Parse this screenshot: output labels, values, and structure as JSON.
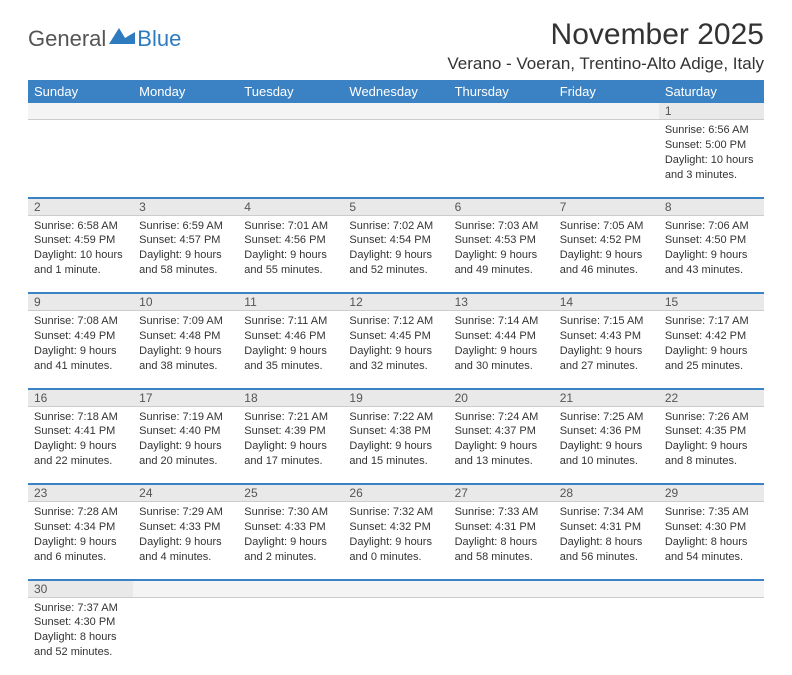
{
  "brand": {
    "general": "General",
    "blue": "Blue"
  },
  "title": "November 2025",
  "location": "Verano - Voeran, Trentino-Alto Adige, Italy",
  "colors": {
    "header_bg": "#3b82c4",
    "daynum_bg": "#e9e9e9",
    "rule": "#3b82c4"
  },
  "weekdays": [
    "Sunday",
    "Monday",
    "Tuesday",
    "Wednesday",
    "Thursday",
    "Friday",
    "Saturday"
  ],
  "weeks": [
    [
      null,
      null,
      null,
      null,
      null,
      null,
      {
        "n": "1",
        "sr": "Sunrise: 6:56 AM",
        "ss": "Sunset: 5:00 PM",
        "d1": "Daylight: 10 hours",
        "d2": "and 3 minutes."
      }
    ],
    [
      {
        "n": "2",
        "sr": "Sunrise: 6:58 AM",
        "ss": "Sunset: 4:59 PM",
        "d1": "Daylight: 10 hours",
        "d2": "and 1 minute."
      },
      {
        "n": "3",
        "sr": "Sunrise: 6:59 AM",
        "ss": "Sunset: 4:57 PM",
        "d1": "Daylight: 9 hours",
        "d2": "and 58 minutes."
      },
      {
        "n": "4",
        "sr": "Sunrise: 7:01 AM",
        "ss": "Sunset: 4:56 PM",
        "d1": "Daylight: 9 hours",
        "d2": "and 55 minutes."
      },
      {
        "n": "5",
        "sr": "Sunrise: 7:02 AM",
        "ss": "Sunset: 4:54 PM",
        "d1": "Daylight: 9 hours",
        "d2": "and 52 minutes."
      },
      {
        "n": "6",
        "sr": "Sunrise: 7:03 AM",
        "ss": "Sunset: 4:53 PM",
        "d1": "Daylight: 9 hours",
        "d2": "and 49 minutes."
      },
      {
        "n": "7",
        "sr": "Sunrise: 7:05 AM",
        "ss": "Sunset: 4:52 PM",
        "d1": "Daylight: 9 hours",
        "d2": "and 46 minutes."
      },
      {
        "n": "8",
        "sr": "Sunrise: 7:06 AM",
        "ss": "Sunset: 4:50 PM",
        "d1": "Daylight: 9 hours",
        "d2": "and 43 minutes."
      }
    ],
    [
      {
        "n": "9",
        "sr": "Sunrise: 7:08 AM",
        "ss": "Sunset: 4:49 PM",
        "d1": "Daylight: 9 hours",
        "d2": "and 41 minutes."
      },
      {
        "n": "10",
        "sr": "Sunrise: 7:09 AM",
        "ss": "Sunset: 4:48 PM",
        "d1": "Daylight: 9 hours",
        "d2": "and 38 minutes."
      },
      {
        "n": "11",
        "sr": "Sunrise: 7:11 AM",
        "ss": "Sunset: 4:46 PM",
        "d1": "Daylight: 9 hours",
        "d2": "and 35 minutes."
      },
      {
        "n": "12",
        "sr": "Sunrise: 7:12 AM",
        "ss": "Sunset: 4:45 PM",
        "d1": "Daylight: 9 hours",
        "d2": "and 32 minutes."
      },
      {
        "n": "13",
        "sr": "Sunrise: 7:14 AM",
        "ss": "Sunset: 4:44 PM",
        "d1": "Daylight: 9 hours",
        "d2": "and 30 minutes."
      },
      {
        "n": "14",
        "sr": "Sunrise: 7:15 AM",
        "ss": "Sunset: 4:43 PM",
        "d1": "Daylight: 9 hours",
        "d2": "and 27 minutes."
      },
      {
        "n": "15",
        "sr": "Sunrise: 7:17 AM",
        "ss": "Sunset: 4:42 PM",
        "d1": "Daylight: 9 hours",
        "d2": "and 25 minutes."
      }
    ],
    [
      {
        "n": "16",
        "sr": "Sunrise: 7:18 AM",
        "ss": "Sunset: 4:41 PM",
        "d1": "Daylight: 9 hours",
        "d2": "and 22 minutes."
      },
      {
        "n": "17",
        "sr": "Sunrise: 7:19 AM",
        "ss": "Sunset: 4:40 PM",
        "d1": "Daylight: 9 hours",
        "d2": "and 20 minutes."
      },
      {
        "n": "18",
        "sr": "Sunrise: 7:21 AM",
        "ss": "Sunset: 4:39 PM",
        "d1": "Daylight: 9 hours",
        "d2": "and 17 minutes."
      },
      {
        "n": "19",
        "sr": "Sunrise: 7:22 AM",
        "ss": "Sunset: 4:38 PM",
        "d1": "Daylight: 9 hours",
        "d2": "and 15 minutes."
      },
      {
        "n": "20",
        "sr": "Sunrise: 7:24 AM",
        "ss": "Sunset: 4:37 PM",
        "d1": "Daylight: 9 hours",
        "d2": "and 13 minutes."
      },
      {
        "n": "21",
        "sr": "Sunrise: 7:25 AM",
        "ss": "Sunset: 4:36 PM",
        "d1": "Daylight: 9 hours",
        "d2": "and 10 minutes."
      },
      {
        "n": "22",
        "sr": "Sunrise: 7:26 AM",
        "ss": "Sunset: 4:35 PM",
        "d1": "Daylight: 9 hours",
        "d2": "and 8 minutes."
      }
    ],
    [
      {
        "n": "23",
        "sr": "Sunrise: 7:28 AM",
        "ss": "Sunset: 4:34 PM",
        "d1": "Daylight: 9 hours",
        "d2": "and 6 minutes."
      },
      {
        "n": "24",
        "sr": "Sunrise: 7:29 AM",
        "ss": "Sunset: 4:33 PM",
        "d1": "Daylight: 9 hours",
        "d2": "and 4 minutes."
      },
      {
        "n": "25",
        "sr": "Sunrise: 7:30 AM",
        "ss": "Sunset: 4:33 PM",
        "d1": "Daylight: 9 hours",
        "d2": "and 2 minutes."
      },
      {
        "n": "26",
        "sr": "Sunrise: 7:32 AM",
        "ss": "Sunset: 4:32 PM",
        "d1": "Daylight: 9 hours",
        "d2": "and 0 minutes."
      },
      {
        "n": "27",
        "sr": "Sunrise: 7:33 AM",
        "ss": "Sunset: 4:31 PM",
        "d1": "Daylight: 8 hours",
        "d2": "and 58 minutes."
      },
      {
        "n": "28",
        "sr": "Sunrise: 7:34 AM",
        "ss": "Sunset: 4:31 PM",
        "d1": "Daylight: 8 hours",
        "d2": "and 56 minutes."
      },
      {
        "n": "29",
        "sr": "Sunrise: 7:35 AM",
        "ss": "Sunset: 4:30 PM",
        "d1": "Daylight: 8 hours",
        "d2": "and 54 minutes."
      }
    ],
    [
      {
        "n": "30",
        "sr": "Sunrise: 7:37 AM",
        "ss": "Sunset: 4:30 PM",
        "d1": "Daylight: 8 hours",
        "d2": "and 52 minutes."
      },
      null,
      null,
      null,
      null,
      null,
      null
    ]
  ]
}
